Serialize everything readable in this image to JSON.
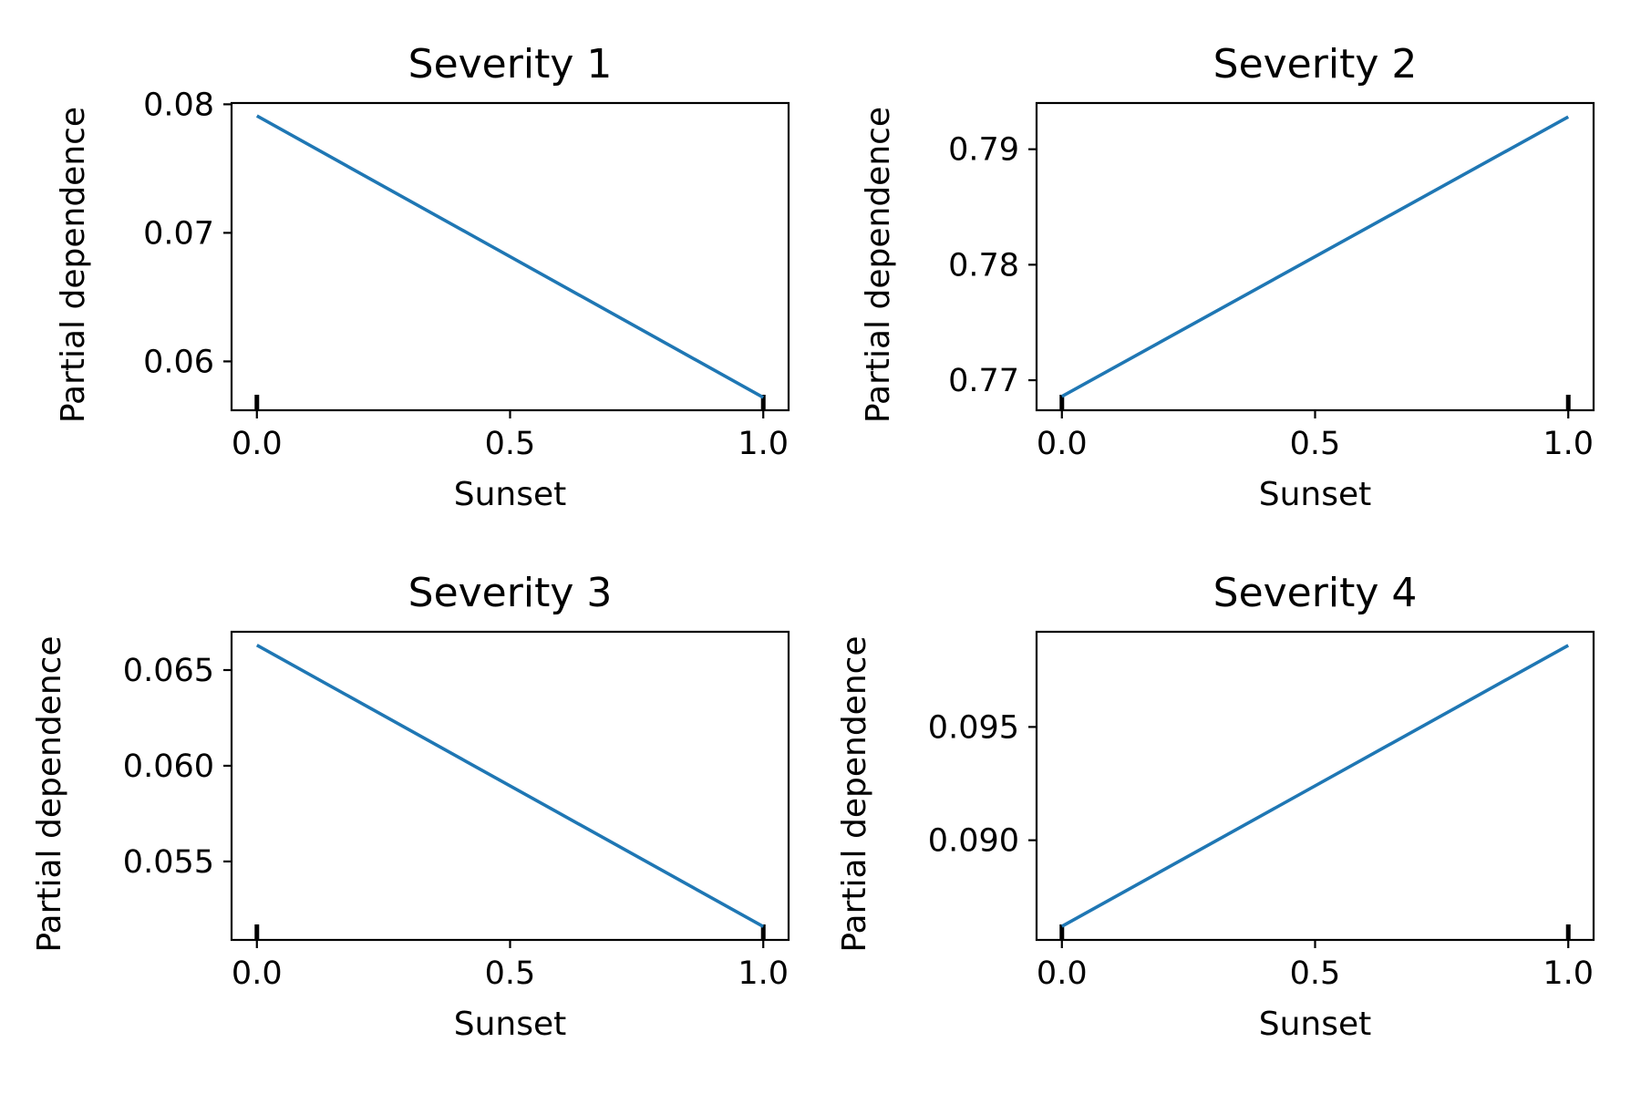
{
  "chart_data": [
    {
      "type": "line",
      "title": "Severity 1",
      "xlabel": "Sunset",
      "ylabel": "Partial dependence",
      "x": [
        0.0,
        1.0
      ],
      "series": [
        {
          "values": [
            0.0791,
            0.0572
          ]
        }
      ],
      "xlim": [
        -0.05,
        1.05
      ],
      "ylim": [
        0.0562,
        0.0801
      ],
      "xticks": [
        "0.0",
        "0.5",
        "1.0"
      ],
      "yticks": [
        "0.06",
        "0.07",
        "0.08"
      ],
      "rug": [
        0.0,
        1.0
      ],
      "grid": false,
      "legend": "none"
    },
    {
      "type": "line",
      "title": "Severity 2",
      "xlabel": "Sunset",
      "ylabel": "Partial dependence",
      "x": [
        0.0,
        1.0
      ],
      "series": [
        {
          "values": [
            0.7686,
            0.7928
          ]
        }
      ],
      "xlim": [
        -0.05,
        1.05
      ],
      "ylim": [
        0.7674,
        0.794
      ],
      "xticks": [
        "0.0",
        "0.5",
        "1.0"
      ],
      "yticks": [
        "0.77",
        "0.78",
        "0.79"
      ],
      "rug": [
        0.0,
        1.0
      ],
      "grid": false,
      "legend": "none"
    },
    {
      "type": "line",
      "title": "Severity 3",
      "xlabel": "Sunset",
      "ylabel": "Partial dependence",
      "x": [
        0.0,
        1.0
      ],
      "series": [
        {
          "values": [
            0.0663,
            0.0516
          ]
        }
      ],
      "xlim": [
        -0.05,
        1.05
      ],
      "ylim": [
        0.0509,
        0.067
      ],
      "xticks": [
        "0.0",
        "0.5",
        "1.0"
      ],
      "yticks": [
        "0.055",
        "0.060",
        "0.065"
      ],
      "rug": [
        0.0,
        1.0
      ],
      "grid": false,
      "legend": "none"
    },
    {
      "type": "line",
      "title": "Severity 4",
      "xlabel": "Sunset",
      "ylabel": "Partial dependence",
      "x": [
        0.0,
        1.0
      ],
      "series": [
        {
          "values": [
            0.0862,
            0.0986
          ]
        }
      ],
      "xlim": [
        -0.05,
        1.05
      ],
      "ylim": [
        0.0856,
        0.0992
      ],
      "xticks": [
        "0.0",
        "0.5",
        "1.0"
      ],
      "yticks": [
        "0.090",
        "0.095"
      ],
      "rug": [
        0.0,
        1.0
      ],
      "grid": false,
      "legend": "none"
    }
  ],
  "colors": {
    "line": "#1f77b4",
    "axes": "#000000",
    "background": "#ffffff"
  }
}
